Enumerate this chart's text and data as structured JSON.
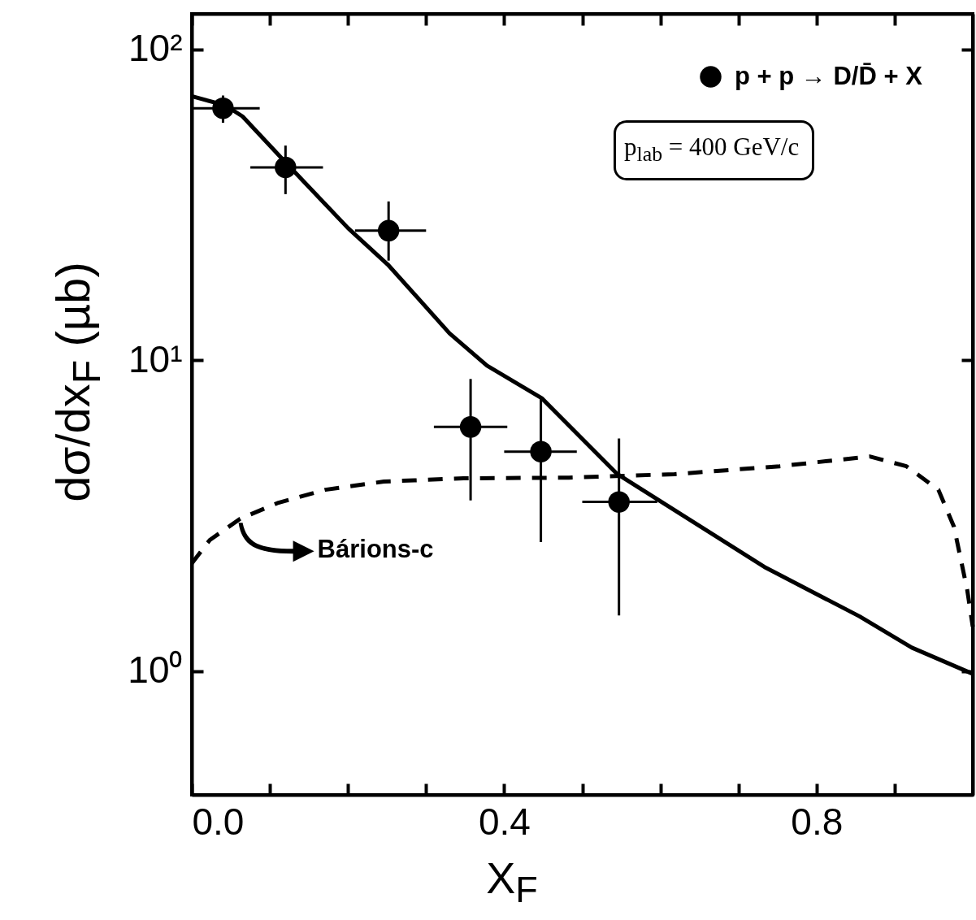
{
  "chart_data": {
    "type": "scatter",
    "xlabel": "X$_{F}$",
    "ylabel": "dσ/dx$_{F}$ (µb)",
    "log": "y",
    "grid": false,
    "legend": "top right",
    "xlim": [
      0,
      1
    ],
    "ylim": [
      0.4,
      130
    ],
    "xticks": [
      {
        "value": 0,
        "label": "0.0"
      },
      {
        "value": 0.1,
        "label": null
      },
      {
        "value": 0.2,
        "label": null
      },
      {
        "value": 0.3,
        "label": null
      },
      {
        "value": 0.4,
        "label": "0.4"
      },
      {
        "value": 0.5,
        "label": null
      },
      {
        "value": 0.6,
        "label": null
      },
      {
        "value": 0.7,
        "label": null
      },
      {
        "value": 0.8,
        "label": "0.8"
      },
      {
        "value": 0.9,
        "label": null
      }
    ],
    "yticks": [
      {
        "value": 1,
        "label": "10⁰"
      },
      {
        "value": 10,
        "label": "10¹"
      },
      {
        "value": 100,
        "label": "10²"
      }
    ],
    "series": [
      {
        "name": "p + p → D/D̄ + X",
        "marker": "circle",
        "color": "#000000",
        "x": [
          0.04,
          0.12,
          0.252,
          0.357,
          0.447,
          0.547
        ],
        "values": [
          64.6,
          41.7,
          26.1,
          6.1,
          5.08,
          3.5
        ],
        "errors": [
          [
            58,
            71
          ],
          [
            34.2,
            49
          ],
          [
            20.9,
            32.4
          ],
          [
            3.54,
            8.7
          ],
          [
            2.6,
            7.55
          ],
          [
            1.51,
            5.6
          ]
        ],
        "xerrors": [
          [
            0,
            0.087
          ],
          [
            0.075,
            0.168
          ],
          [
            0.209,
            0.3
          ],
          [
            0.31,
            0.404
          ],
          [
            0.4,
            0.493
          ],
          [
            0.5,
            0.596
          ]
        ]
      },
      {
        "type": "line",
        "line_style": "solid",
        "color": "#000000",
        "x": [
          0,
          0.043,
          0.065,
          0.121,
          0.2,
          0.251,
          0.33,
          0.378,
          0.448,
          0.545,
          0.735,
          0.855,
          0.922,
          1.0
        ],
        "values": [
          70.6,
          66,
          60.8,
          43,
          26.6,
          20.3,
          12.2,
          9.6,
          7.55,
          4.3,
          2.15,
          1.5,
          1.19,
          0.98
        ]
      },
      {
        "name": "Bárions-c",
        "type": "line",
        "line_style": "dashed",
        "color": "#000000",
        "x": [
          0,
          0.023,
          0.062,
          0.111,
          0.171,
          0.246,
          0.348,
          0.483,
          0.618,
          0.753,
          0.868,
          0.915,
          0.956,
          0.976,
          0.993,
          1.0
        ],
        "values": [
          2.22,
          2.64,
          3.09,
          3.48,
          3.83,
          4.07,
          4.17,
          4.19,
          4.3,
          4.56,
          4.9,
          4.56,
          3.83,
          2.91,
          1.82,
          1.39
        ]
      }
    ],
    "annotations": [
      "p$_{lab}$ = 400 GeV/c"
    ]
  }
}
